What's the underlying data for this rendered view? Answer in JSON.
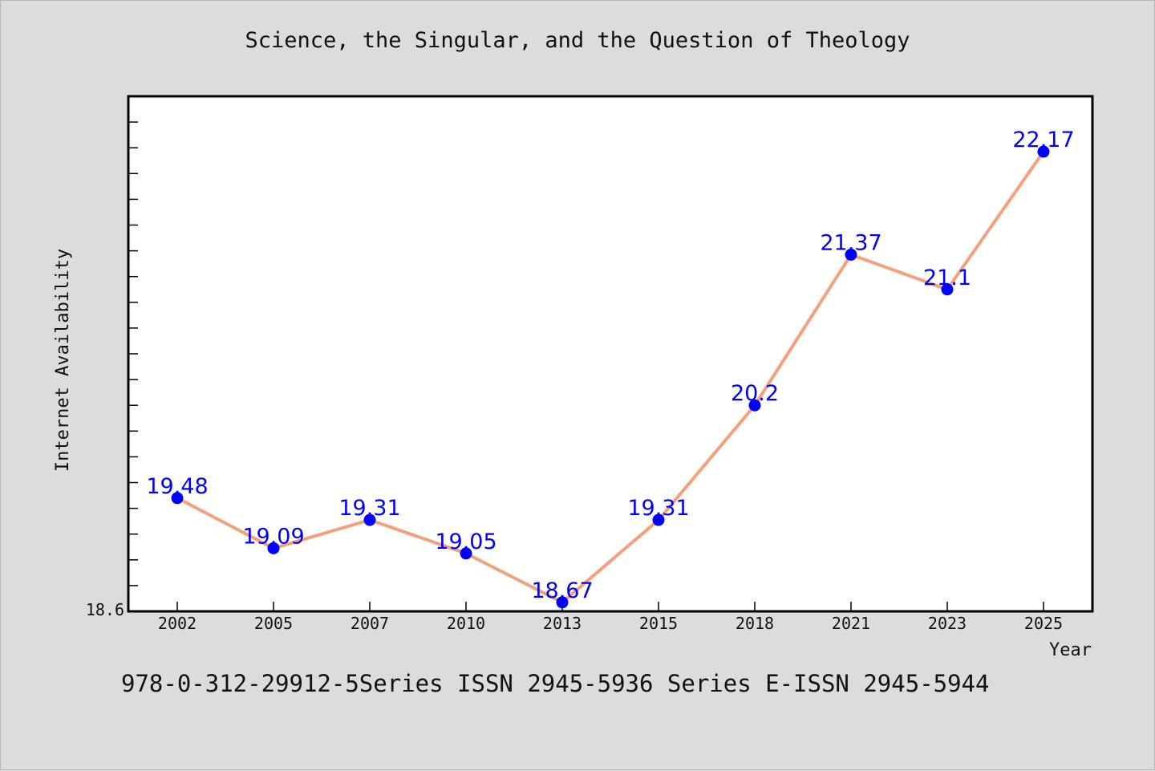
{
  "chart_data": {
    "type": "line",
    "title": "Science, the Singular, and the Question of Theology",
    "xlabel": "Year",
    "ylabel": "Internet Availability",
    "categories": [
      "2002",
      "2005",
      "2007",
      "2010",
      "2013",
      "2015",
      "2018",
      "2021",
      "2023",
      "2025"
    ],
    "values": [
      19.48,
      19.09,
      19.31,
      19.05,
      18.67,
      19.31,
      20.2,
      21.37,
      21.1,
      22.17
    ],
    "data_labels": [
      "19.48",
      "19.09",
      "19.31",
      "19.05",
      "18.67",
      "19.31",
      "20.2",
      "21.37",
      "21.1",
      "22.17"
    ],
    "ylim": [
      18.6,
      22.6
    ],
    "y_tick_labels": [
      "18.6"
    ],
    "grid": false,
    "line_color": "#f4a07a",
    "marker_color": "#0000ff",
    "label_color": "#0000ff"
  },
  "footer_text": "978-0-312-29912-5Series ISSN 2945-5936 Series E-ISSN 2945-5944"
}
